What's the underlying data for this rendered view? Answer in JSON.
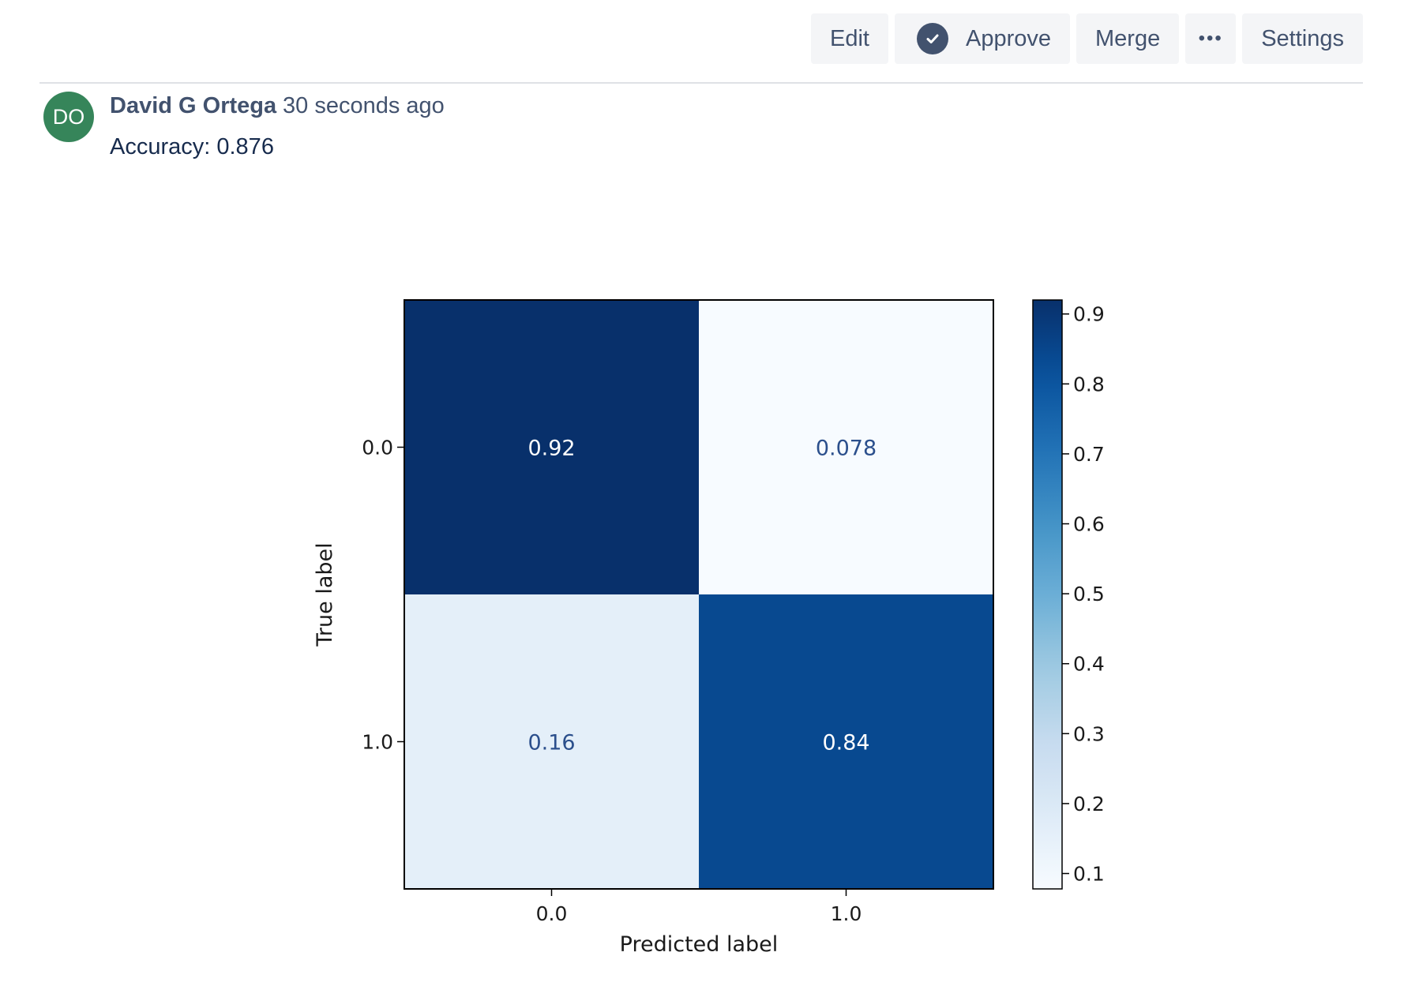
{
  "toolbar": {
    "edit_label": "Edit",
    "approve_label": "Approve",
    "merge_label": "Merge",
    "more_label": "•••",
    "settings_label": "Settings"
  },
  "comment": {
    "avatar_initials": "DO",
    "avatar_color": "#36855a",
    "author": "David G Ortega",
    "timestamp": "30 seconds ago",
    "body": "Accuracy: 0.876"
  },
  "chart_data": {
    "type": "heatmap",
    "title": "",
    "xlabel": "Predicted label",
    "ylabel": "True label",
    "x_categories": [
      "0.0",
      "1.0"
    ],
    "y_categories": [
      "0.0",
      "1.0"
    ],
    "values": [
      [
        0.92,
        0.078
      ],
      [
        0.16,
        0.84
      ]
    ],
    "value_labels": [
      [
        "0.92",
        "0.078"
      ],
      [
        "0.16",
        "0.84"
      ]
    ],
    "colormap": "Blues",
    "colorbar": {
      "range": [
        0.078,
        0.92
      ],
      "ticks": [
        0.1,
        0.2,
        0.3,
        0.4,
        0.5,
        0.6,
        0.7,
        0.8,
        0.9
      ],
      "tick_labels": [
        "0.1",
        "0.2",
        "0.3",
        "0.4",
        "0.5",
        "0.6",
        "0.7",
        "0.8",
        "0.9"
      ]
    }
  }
}
